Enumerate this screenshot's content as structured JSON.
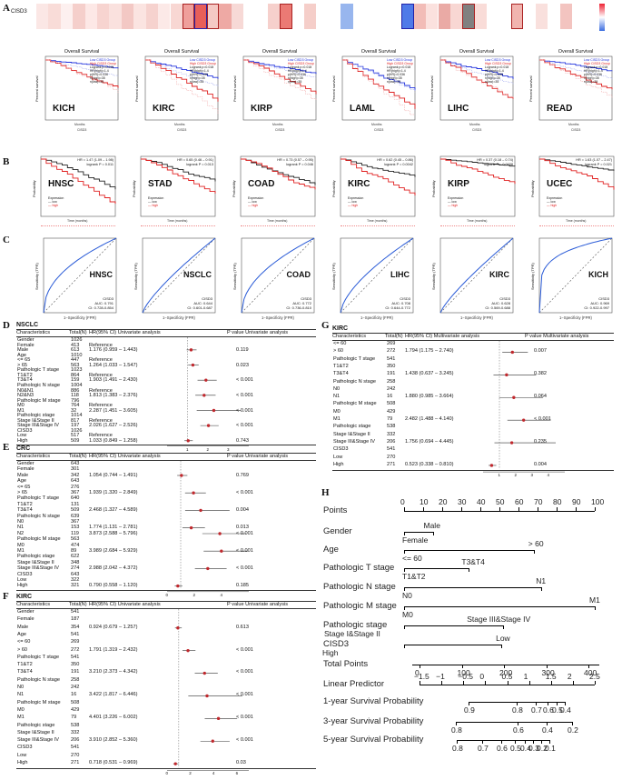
{
  "panel_labels": {
    "A": "A",
    "B": "B",
    "C": "C",
    "D": "D",
    "E": "E",
    "F": "F",
    "G": "G",
    "H": "H"
  },
  "panel_a": {
    "gene": "CISD3",
    "heat_colors": [
      "#fbe7e5",
      "#f9dcd8",
      "#fdf0ef",
      "#f5cfcb",
      "#fde8e6",
      "#f7d4d0",
      "#fae1de",
      "#f3c8c4",
      "#fbe4e1",
      "#f6d2ce",
      "#fce9e7",
      "#f8d7d3",
      "#ef9f9b",
      "#e85f59",
      "#f4c9c4",
      "#eea9a4",
      "#f7d9d6",
      "#ffffff",
      "#ffffff",
      "#f6d0cc",
      "#eb7a74",
      "#ffffff",
      "#f5cec9",
      "#ffffff",
      "#ffffff",
      "#98b6ee",
      "#ffffff",
      "#ffffff",
      "#ffffff",
      "#ffffff",
      "#4f7ae8",
      "#f2bcb7",
      "#fbe1de",
      "#eaaaa5",
      "#f8d7d3",
      "#808080",
      "#f9dcd8",
      "#ffffff",
      "#ffffff",
      "#f1b4af",
      "#ffffff",
      "#f9e0dd",
      "#ffffff",
      "#f3c4c0"
    ],
    "boxed": [
      12,
      13,
      14,
      20,
      30,
      35,
      39
    ]
  },
  "km_a": {
    "title": "Overall Survival",
    "ylabel": "Percent survival",
    "xlabel": "Months",
    "sublabel": "CISD3",
    "legend": [
      "Low CISD3 Group",
      "High CISD3 Group",
      "Logrank p=0.018",
      "HR(high)=1.4",
      "p(HR)=0.036",
      "n(high)=35",
      "n(low)=35"
    ],
    "cancers": [
      "KICH",
      "KIRC",
      "KIRP",
      "LAML",
      "LIHC",
      "READ"
    ]
  },
  "km_b": {
    "ylabel": "Probability",
    "xlabel": "Time (months)",
    "legend_title": "Expression",
    "legend_items": [
      "low",
      "high"
    ],
    "panels": [
      {
        "name": "HNSC",
        "hr": "HR = 1.47 (1.09 – 1.98)",
        "p": "logrank P = 0.011"
      },
      {
        "name": "STAD",
        "hr": "HR = 0.65 (0.46 – 0.91)",
        "p": "logrank P = 0.013"
      },
      {
        "name": "COAD",
        "hr": "HR = 0.73 (0.57 – 0.95)",
        "p": "logrank P = 0.046"
      },
      {
        "name": "KIRC",
        "hr": "HR = 0.62 (0.45 – 0.86)",
        "p": "logrank P = 0.0042"
      },
      {
        "name": "KIRP",
        "hr": "HR = 0.37 (0.18 – 0.74)",
        "p": "logrank P = 0.0038"
      },
      {
        "name": "UCEC",
        "hr": "HR = 1.63 (1.07 – 2.47)",
        "p": "logrank P = 0.021"
      }
    ]
  },
  "roc_c": {
    "xlabel": "1−Specificity (FPR)",
    "ylabel": "Sensitivity (TPR)",
    "panels": [
      {
        "name": "HNSC",
        "gene": "CISD3",
        "auc": "AUC: 0.791",
        "ci": "CI: 0.728-0.854"
      },
      {
        "name": "NSCLC",
        "gene": "CISD3",
        "auc": "AUC: 0.644",
        "ci": "CI: 0.601-0.687"
      },
      {
        "name": "COAD",
        "gene": "CISD3",
        "auc": "AUC: 0.772",
        "ci": "CI: 0.736-0.810"
      },
      {
        "name": "LIHC",
        "gene": "CISD3",
        "auc": "AUC: 0.708",
        "ci": "CI: 0.644-0.772"
      },
      {
        "name": "KIRC",
        "gene": "CISD3",
        "auc": "AUC: 0.628",
        "ci": "CI: 0.569-0.688"
      },
      {
        "name": "KICH",
        "gene": "CISD3",
        "auc": "AUC: 0.969",
        "ci": "CI: 0.922-0.997"
      }
    ]
  },
  "table_headers": {
    "characteristics": "Characteristics",
    "total": "Total(N)",
    "hr": "HR(95% CI) Univariate analysis",
    "p": "P value Univariate analysis",
    "hr_multi": "HR(95% CI) Multivariate analysis",
    "p_multi": "P value Multivariate analysis"
  },
  "table_d": {
    "title": "NSCLC",
    "rows": [
      [
        "Gender",
        "1026",
        "",
        ""
      ],
      [
        "Female",
        "413",
        "Reference",
        ""
      ],
      [
        "Male",
        "613",
        "1.176 (0.959 – 1.443)",
        "0.119"
      ],
      [
        "Age",
        "1010",
        "",
        ""
      ],
      [
        "<= 65",
        "447",
        "Reference",
        ""
      ],
      [
        "> 65",
        "563",
        "1.264 (1.033 – 1.547)",
        "0.023"
      ],
      [
        "Pathologic T stage",
        "1023",
        "",
        ""
      ],
      [
        "T1&T2",
        "864",
        "Reference",
        ""
      ],
      [
        "T3&T4",
        "159",
        "1.903 (1.491 – 2.430)",
        "< 0.001"
      ],
      [
        "Pathologic N stage",
        "1004",
        "",
        ""
      ],
      [
        "N0&N1",
        "886",
        "Reference",
        ""
      ],
      [
        "N2&N3",
        "118",
        "1.813 (1.383 – 2.376)",
        "< 0.001"
      ],
      [
        "Pathologic M stage",
        "796",
        "",
        ""
      ],
      [
        "M0",
        "764",
        "Reference",
        ""
      ],
      [
        "M1",
        "32",
        "2.287 (1.451 – 3.605)",
        "< 0.001"
      ],
      [
        "Pathologic stage",
        "1014",
        "",
        ""
      ],
      [
        "Stage I&Stage II",
        "817",
        "Reference",
        ""
      ],
      [
        "Stage III&Stage IV",
        "197",
        "2.026 (1.627 – 2.526)",
        "< 0.001"
      ],
      [
        "CISD3",
        "1026",
        "",
        ""
      ],
      [
        "Low",
        "517",
        "Reference",
        ""
      ],
      [
        "High",
        "509",
        "1.033 (0.849 – 1.258)",
        "0.743"
      ]
    ],
    "hr": [
      null,
      null,
      1.176,
      null,
      null,
      1.264,
      null,
      null,
      1.903,
      null,
      null,
      1.813,
      null,
      null,
      2.287,
      null,
      null,
      2.026,
      null,
      null,
      1.033
    ],
    "lo": [
      null,
      null,
      0.959,
      null,
      null,
      1.033,
      null,
      null,
      1.491,
      null,
      null,
      1.383,
      null,
      null,
      1.451,
      null,
      null,
      1.627,
      null,
      null,
      0.849
    ],
    "hi": [
      null,
      null,
      1.443,
      null,
      null,
      1.547,
      null,
      null,
      2.43,
      null,
      null,
      2.376,
      null,
      null,
      3.605,
      null,
      null,
      2.526,
      null,
      null,
      1.258
    ],
    "axis_max": 4,
    "axis_ticks": [
      "1",
      "2",
      "3"
    ]
  },
  "table_e": {
    "title": "CRC",
    "rows": [
      [
        "Gender",
        "643",
        "",
        ""
      ],
      [
        "Female",
        "301",
        "",
        ""
      ],
      [
        "Male",
        "342",
        "1.054 (0.744 – 1.491)",
        "0.769"
      ],
      [
        "Age",
        "643",
        "",
        ""
      ],
      [
        "<= 65",
        "276",
        "",
        ""
      ],
      [
        "> 65",
        "367",
        "1.939 (1.320 – 2.849)",
        "< 0.001"
      ],
      [
        "Pathologic T stage",
        "640",
        "",
        ""
      ],
      [
        "T1&T2",
        "131",
        "",
        ""
      ],
      [
        "T3&T4",
        "509",
        "2.468 (1.327 – 4.589)",
        "0.004"
      ],
      [
        "Pathologic N stage",
        "639",
        "",
        ""
      ],
      [
        "N0",
        "367",
        "",
        ""
      ],
      [
        "N1",
        "153",
        "1.774 (1.131 – 2.781)",
        "0.013"
      ],
      [
        "N2",
        "119",
        "3.873 (2.588 – 5.796)",
        "< 0.001"
      ],
      [
        "Pathologic M stage",
        "563",
        "",
        ""
      ],
      [
        "M0",
        "474",
        "",
        ""
      ],
      [
        "M1",
        "89",
        "3.989 (2.684 – 5.929)",
        "< 0.001"
      ],
      [
        "Pathologic stage",
        "622",
        "",
        ""
      ],
      [
        "Stage I&Stage II",
        "348",
        "",
        ""
      ],
      [
        "Stage III&Stage IV",
        "274",
        "2.988 (2.042 – 4.372)",
        "< 0.001"
      ],
      [
        "CISD3",
        "643",
        "",
        ""
      ],
      [
        "Low",
        "322",
        "",
        ""
      ],
      [
        "High",
        "321",
        "0.790 (0.558 – 1.120)",
        "0.185"
      ]
    ],
    "hr": [
      null,
      null,
      1.054,
      null,
      null,
      1.939,
      null,
      null,
      2.468,
      null,
      null,
      1.774,
      3.873,
      null,
      null,
      3.989,
      null,
      null,
      2.988,
      null,
      null,
      0.79
    ],
    "lo": [
      null,
      null,
      0.744,
      null,
      null,
      1.32,
      null,
      null,
      1.327,
      null,
      null,
      1.131,
      2.588,
      null,
      null,
      2.684,
      null,
      null,
      2.042,
      null,
      null,
      0.558
    ],
    "hi": [
      null,
      null,
      1.491,
      null,
      null,
      2.849,
      null,
      null,
      4.589,
      null,
      null,
      2.781,
      5.796,
      null,
      null,
      5.929,
      null,
      null,
      4.372,
      null,
      null,
      1.12
    ],
    "axis_max": 6,
    "axis_ticks": [
      "0",
      "2",
      "4"
    ]
  },
  "table_f": {
    "title": "KIRC",
    "rows": [
      [
        "Gender",
        "541",
        "",
        ""
      ],
      [
        "Female",
        "187",
        "",
        ""
      ],
      [
        "Male",
        "354",
        "0.924 (0.679 – 1.257)",
        "0.613"
      ],
      [
        "Age",
        "541",
        "",
        ""
      ],
      [
        "<= 60",
        "269",
        "",
        ""
      ],
      [
        "> 60",
        "272",
        "1.791 (1.319 – 2.432)",
        "< 0.001"
      ],
      [
        "Pathologic T stage",
        "541",
        "",
        ""
      ],
      [
        "T1&T2",
        "350",
        "",
        ""
      ],
      [
        "T3&T4",
        "191",
        "3.210 (2.373 – 4.342)",
        "< 0.001"
      ],
      [
        "Pathologic N stage",
        "258",
        "",
        ""
      ],
      [
        "N0",
        "242",
        "",
        ""
      ],
      [
        "N1",
        "16",
        "3.422 (1.817 – 6.446)",
        "< 0.001"
      ],
      [
        "Pathologic M stage",
        "508",
        "",
        ""
      ],
      [
        "M0",
        "429",
        "",
        ""
      ],
      [
        "M1",
        "79",
        "4.401 (3.226 – 6.002)",
        "< 0.001"
      ],
      [
        "Pathologic stage",
        "538",
        "",
        ""
      ],
      [
        "Stage I&Stage II",
        "332",
        "",
        ""
      ],
      [
        "Stage III&Stage IV",
        "206",
        "3.910 (2.852 – 5.360)",
        "< 0.001"
      ],
      [
        "CISD3",
        "541",
        "",
        ""
      ],
      [
        "Low",
        "270",
        "",
        ""
      ],
      [
        "High",
        "271",
        "0.718 (0.531 – 0.969)",
        "0.03"
      ]
    ],
    "hr": [
      null,
      null,
      0.924,
      null,
      null,
      1.791,
      null,
      null,
      3.21,
      null,
      null,
      3.422,
      null,
      null,
      4.401,
      null,
      null,
      3.91,
      null,
      null,
      0.718
    ],
    "lo": [
      null,
      null,
      0.679,
      null,
      null,
      1.319,
      null,
      null,
      2.373,
      null,
      null,
      1.817,
      null,
      null,
      3.226,
      null,
      null,
      2.852,
      null,
      null,
      0.531
    ],
    "hi": [
      null,
      null,
      1.257,
      null,
      null,
      2.432,
      null,
      null,
      4.342,
      null,
      null,
      6.446,
      null,
      null,
      6.002,
      null,
      null,
      5.36,
      null,
      null,
      0.969
    ],
    "axis_max": 7,
    "axis_ticks": [
      "0",
      "2",
      "4",
      "6"
    ]
  },
  "table_g": {
    "title": "KIRC",
    "rows": [
      [
        "<= 60",
        "269",
        "",
        ""
      ],
      [
        "> 60",
        "272",
        "1.794 (1.175 – 2.740)",
        "0.007"
      ],
      [
        "Pathologic T stage",
        "541",
        "",
        ""
      ],
      [
        "T1&T2",
        "350",
        "",
        ""
      ],
      [
        "T3&T4",
        "191",
        "1.438 (0.637 – 3.245)",
        "0.382"
      ],
      [
        "Pathologic N stage",
        "258",
        "",
        ""
      ],
      [
        "N0",
        "242",
        "",
        ""
      ],
      [
        "N1",
        "16",
        "1.880 (0.985 – 3.664)",
        "0.064"
      ],
      [
        "Pathologic M stage",
        "508",
        "",
        ""
      ],
      [
        "M0",
        "429",
        "",
        ""
      ],
      [
        "M1",
        "79",
        "2.482 (1.488 – 4.140)",
        "< 0.001"
      ],
      [
        "Pathologic stage",
        "538",
        "",
        ""
      ],
      [
        "Stage I&Stage II",
        "332",
        "",
        ""
      ],
      [
        "Stage III&Stage IV",
        "206",
        "1.756 (0.694 – 4.445)",
        "0.235"
      ],
      [
        "CISD3",
        "541",
        "",
        ""
      ],
      [
        "Low",
        "270",
        "",
        ""
      ],
      [
        "High",
        "271",
        "0.523 (0.338 – 0.810)",
        "0.004"
      ]
    ],
    "hr": [
      null,
      1.794,
      null,
      null,
      1.438,
      null,
      null,
      1.88,
      null,
      null,
      2.482,
      null,
      null,
      1.756,
      null,
      null,
      0.523
    ],
    "lo": [
      null,
      1.175,
      null,
      null,
      0.637,
      null,
      null,
      0.985,
      null,
      null,
      1.488,
      null,
      null,
      0.694,
      null,
      null,
      0.338
    ],
    "hi": [
      null,
      2.74,
      null,
      null,
      3.245,
      null,
      null,
      3.664,
      null,
      null,
      4.14,
      null,
      null,
      4.445,
      null,
      null,
      0.81
    ],
    "axis_max": 5,
    "axis_ticks": [
      "1",
      "2",
      "3",
      "4"
    ]
  },
  "nomogram": {
    "rows": [
      {
        "label": "Points"
      },
      {
        "label": "Gender",
        "ticks": [
          "Male",
          "Female"
        ]
      },
      {
        "label": "Age",
        "ticks": [
          "<= 60",
          "> 60"
        ]
      },
      {
        "label": "Pathologic T stage",
        "ticks": [
          "T3&T4",
          "T1&T2"
        ]
      },
      {
        "label": "Pathologic N stage",
        "ticks": [
          "N1",
          "N0"
        ]
      },
      {
        "label": "Pathologic M stage",
        "ticks": [
          "M1",
          "M0"
        ]
      },
      {
        "label": "Pathologic stage",
        "ticks": [
          "Stage III&Stage IV",
          "Stage I&Stage II"
        ]
      },
      {
        "label": "CISD3",
        "ticks": [
          "Low",
          "High"
        ]
      },
      {
        "label": "Total Points"
      },
      {
        "label": "Linear Predictor"
      },
      {
        "label": "1-year Survival Probability"
      },
      {
        "label": "3-year Survival Probability"
      },
      {
        "label": "5-year Survival Probability"
      }
    ],
    "points_ticks": [
      "0",
      "10",
      "20",
      "30",
      "40",
      "50",
      "60",
      "70",
      "80",
      "90",
      "100"
    ],
    "total_ticks": [
      "0",
      "100",
      "200",
      "300",
      "400"
    ],
    "lp_ticks": [
      "−1.5",
      "−1",
      "−0.5",
      "0",
      "0.5",
      "1",
      "1.5",
      "2",
      "2.5"
    ],
    "y1_ticks": [
      "0.9",
      "0.8",
      "0.7",
      "0.6",
      "0.5",
      "0.4"
    ],
    "y3_ticks": [
      "0.8",
      "0.6",
      "0.4",
      "0.2"
    ],
    "y5_ticks": [
      "0.8",
      "0.7",
      "0.6",
      "0.5",
      "0.4",
      "0.3",
      "0.2",
      "0.1"
    ]
  }
}
